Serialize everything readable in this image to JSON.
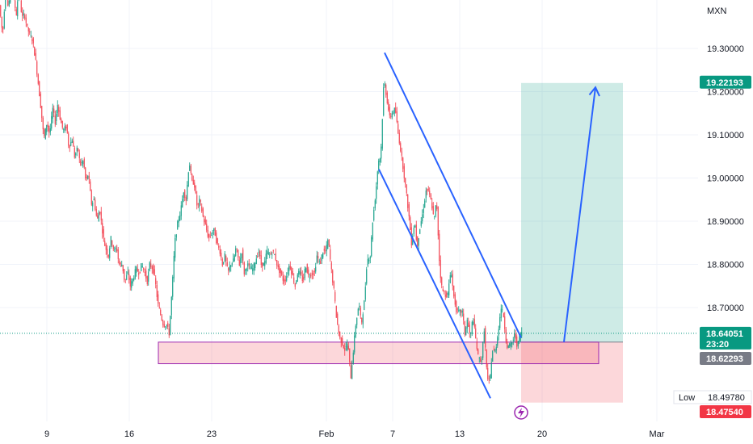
{
  "chart_data": {
    "type": "candlestick",
    "currency": "MXN",
    "ylim": [
      18.43,
      19.5
    ],
    "y_ticks": [
      "19.30000",
      "19.20000",
      "19.10000",
      "19.00000",
      "18.90000",
      "18.80000",
      "18.70000"
    ],
    "x_ticks": [
      "9",
      "16",
      "23",
      "Feb",
      "7",
      "13",
      "20",
      "Mar"
    ],
    "price_path": [
      [
        0,
        19.4
      ],
      [
        4,
        19.33
      ],
      [
        8,
        19.45
      ],
      [
        11,
        19.39
      ],
      [
        15,
        19.47
      ],
      [
        17,
        19.42
      ],
      [
        21,
        19.38
      ],
      [
        24,
        19.44
      ],
      [
        28,
        19.37
      ],
      [
        31,
        19.38
      ],
      [
        34,
        19.35
      ],
      [
        38,
        19.33
      ],
      [
        41,
        19.32
      ],
      [
        45,
        19.27
      ],
      [
        48,
        19.22
      ],
      [
        52,
        19.15
      ],
      [
        55,
        19.09
      ],
      [
        59,
        19.13
      ],
      [
        62,
        19.1
      ],
      [
        66,
        19.16
      ],
      [
        69,
        19.13
      ],
      [
        72,
        19.17
      ],
      [
        76,
        19.13
      ],
      [
        79,
        19.11
      ],
      [
        83,
        19.12
      ],
      [
        86,
        19.07
      ],
      [
        90,
        19.09
      ],
      [
        93,
        19.05
      ],
      [
        97,
        19.07
      ],
      [
        100,
        19.03
      ],
      [
        104,
        19.04
      ],
      [
        107,
        18.99
      ],
      [
        110,
        19.01
      ],
      [
        114,
        18.94
      ],
      [
        117,
        18.95
      ],
      [
        121,
        18.9
      ],
      [
        124,
        18.93
      ],
      [
        128,
        18.87
      ],
      [
        131,
        18.84
      ],
      [
        135,
        18.82
      ],
      [
        138,
        18.86
      ],
      [
        142,
        18.83
      ],
      [
        145,
        18.84
      ],
      [
        148,
        18.8
      ],
      [
        152,
        18.8
      ],
      [
        155,
        18.76
      ],
      [
        159,
        18.78
      ],
      [
        162,
        18.75
      ],
      [
        166,
        18.77
      ],
      [
        169,
        18.79
      ],
      [
        173,
        18.78
      ],
      [
        176,
        18.8
      ],
      [
        180,
        18.78
      ],
      [
        183,
        18.76
      ],
      [
        186,
        18.8
      ],
      [
        190,
        18.79
      ],
      [
        193,
        18.76
      ],
      [
        196,
        18.71
      ],
      [
        200,
        18.68
      ],
      [
        203,
        18.66
      ],
      [
        207,
        18.66
      ],
      [
        210,
        18.64
      ],
      [
        214,
        18.75
      ],
      [
        217,
        18.85
      ],
      [
        221,
        18.9
      ],
      [
        224,
        18.92
      ],
      [
        228,
        18.97
      ],
      [
        231,
        18.95
      ],
      [
        235,
        19.04
      ],
      [
        238,
        18.99
      ],
      [
        241,
        18.99
      ],
      [
        245,
        18.93
      ],
      [
        248,
        18.95
      ],
      [
        252,
        18.91
      ],
      [
        255,
        18.89
      ],
      [
        259,
        18.86
      ],
      [
        262,
        18.87
      ],
      [
        266,
        18.88
      ],
      [
        269,
        18.85
      ],
      [
        273,
        18.83
      ],
      [
        276,
        18.8
      ],
      [
        279,
        18.82
      ],
      [
        283,
        18.78
      ],
      [
        286,
        18.8
      ],
      [
        290,
        18.81
      ],
      [
        293,
        18.84
      ],
      [
        297,
        18.8
      ],
      [
        300,
        18.83
      ],
      [
        303,
        18.78
      ],
      [
        307,
        18.8
      ],
      [
        310,
        18.79
      ],
      [
        314,
        18.79
      ],
      [
        317,
        18.81
      ],
      [
        321,
        18.83
      ],
      [
        324,
        18.8
      ],
      [
        328,
        18.8
      ],
      [
        331,
        18.83
      ],
      [
        335,
        18.82
      ],
      [
        338,
        18.83
      ],
      [
        341,
        18.82
      ],
      [
        345,
        18.79
      ],
      [
        348,
        18.78
      ],
      [
        352,
        18.76
      ],
      [
        355,
        18.77
      ],
      [
        359,
        18.8
      ],
      [
        362,
        18.78
      ],
      [
        366,
        18.75
      ],
      [
        369,
        18.78
      ],
      [
        372,
        18.78
      ],
      [
        376,
        18.76
      ],
      [
        379,
        18.8
      ],
      [
        383,
        18.77
      ],
      [
        386,
        18.78
      ],
      [
        390,
        18.78
      ],
      [
        393,
        18.82
      ],
      [
        397,
        18.8
      ],
      [
        400,
        18.83
      ],
      [
        404,
        18.83
      ],
      [
        407,
        18.86
      ],
      [
        410,
        18.8
      ],
      [
        414,
        18.74
      ],
      [
        417,
        18.68
      ],
      [
        421,
        18.63
      ],
      [
        424,
        18.62
      ],
      [
        428,
        18.6
      ],
      [
        431,
        18.62
      ],
      [
        435,
        18.54
      ],
      [
        438,
        18.6
      ],
      [
        441,
        18.66
      ],
      [
        445,
        18.71
      ],
      [
        448,
        18.66
      ],
      [
        452,
        18.72
      ],
      [
        455,
        18.81
      ],
      [
        459,
        18.82
      ],
      [
        462,
        18.9
      ],
      [
        466,
        18.97
      ],
      [
        469,
        19.04
      ],
      [
        472,
        19.05
      ],
      [
        476,
        19.23
      ],
      [
        479,
        19.19
      ],
      [
        483,
        19.14
      ],
      [
        486,
        19.15
      ],
      [
        490,
        19.16
      ],
      [
        493,
        19.11
      ],
      [
        497,
        19.06
      ],
      [
        500,
        19.02
      ],
      [
        504,
        18.96
      ],
      [
        507,
        18.91
      ],
      [
        510,
        18.85
      ],
      [
        514,
        18.9
      ],
      [
        517,
        18.84
      ],
      [
        521,
        18.89
      ],
      [
        524,
        18.92
      ],
      [
        528,
        18.97
      ],
      [
        531,
        18.97
      ],
      [
        535,
        18.94
      ],
      [
        538,
        18.9
      ],
      [
        541,
        18.95
      ],
      [
        545,
        18.79
      ],
      [
        548,
        18.74
      ],
      [
        552,
        18.73
      ],
      [
        555,
        18.73
      ],
      [
        559,
        18.79
      ],
      [
        562,
        18.73
      ],
      [
        566,
        18.69
      ],
      [
        569,
        18.69
      ],
      [
        573,
        18.69
      ],
      [
        576,
        18.64
      ],
      [
        579,
        18.67
      ],
      [
        583,
        18.63
      ],
      [
        586,
        18.68
      ],
      [
        590,
        18.62
      ],
      [
        593,
        18.58
      ],
      [
        597,
        18.58
      ],
      [
        600,
        18.65
      ],
      [
        604,
        18.53
      ],
      [
        607,
        18.53
      ],
      [
        610,
        18.6
      ],
      [
        614,
        18.6
      ],
      [
        617,
        18.64
      ],
      [
        621,
        18.7
      ],
      [
        624,
        18.68
      ],
      [
        628,
        18.61
      ],
      [
        631,
        18.61
      ],
      [
        635,
        18.62
      ],
      [
        638,
        18.64
      ],
      [
        641,
        18.61
      ],
      [
        645,
        18.64
      ]
    ],
    "channel": {
      "upper_line": [
        [
          476,
          19.29
        ],
        [
          645,
          18.63
        ]
      ],
      "lower_line": [
        [
          469,
          19.02
        ],
        [
          607,
          18.49
        ]
      ]
    },
    "support_zone": {
      "x": [
        196,
        741
      ],
      "y": [
        18.57,
        18.62
      ]
    },
    "position": {
      "x": [
        645,
        771
      ],
      "entry": 18.62,
      "target": 19.22,
      "stop": 18.48
    },
    "projection_arrow": [
      [
        698,
        18.62
      ],
      [
        737,
        19.21
      ]
    ],
    "last_price": 18.64051,
    "price_tags": [
      {
        "value": "19.22193",
        "color": "#089981"
      },
      {
        "value": "18.64051",
        "sub": "23:20",
        "color": "#089981"
      },
      {
        "value": "18.62293",
        "color": "#787b86"
      },
      {
        "value": "18.47540",
        "color": "#f23645"
      }
    ],
    "low_label": {
      "label": "Low",
      "value": "18.49780"
    },
    "colors": {
      "up": "#089981",
      "down": "#f23645",
      "drawing": "#2962ff",
      "zone_border": "#9c27b0"
    }
  }
}
